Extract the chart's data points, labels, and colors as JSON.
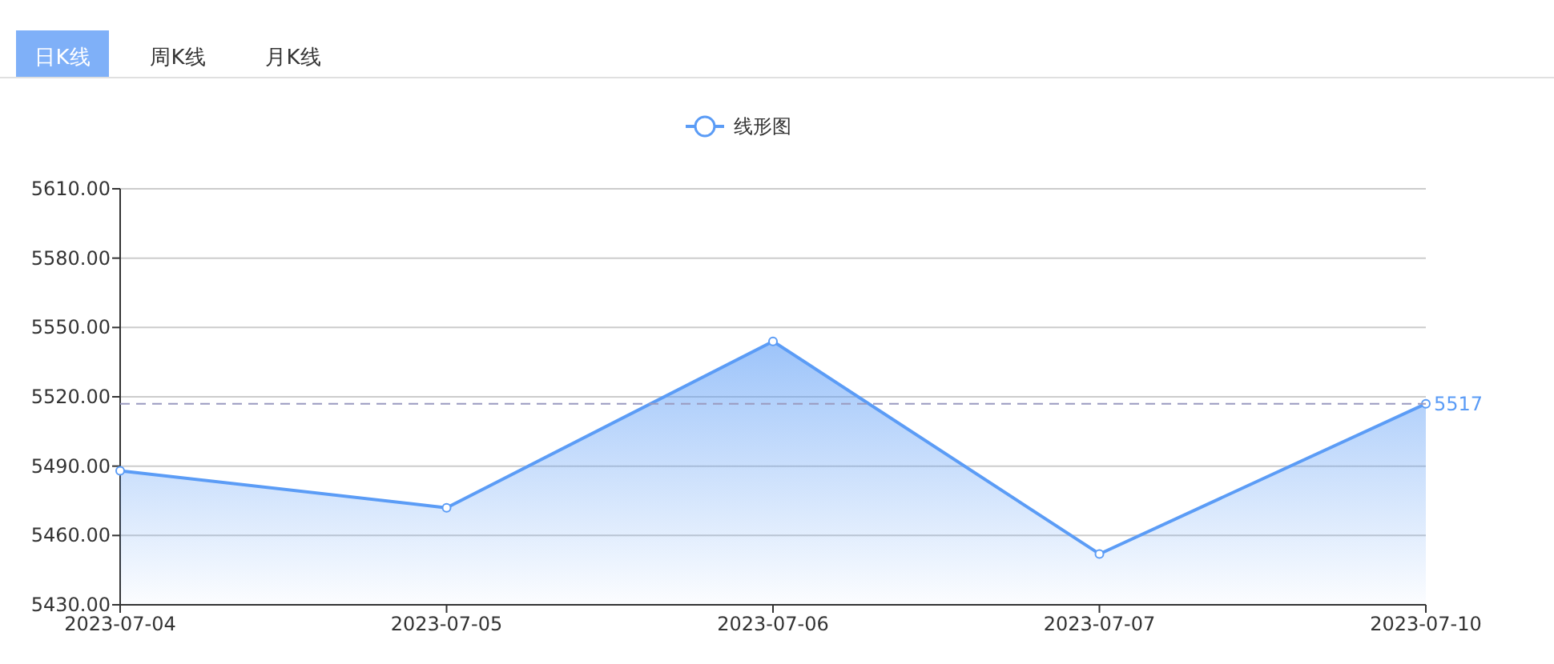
{
  "chart_data": {
    "type": "area",
    "annotations": [
      "日K线",
      "周K线",
      "月K线"
    ],
    "categories": [
      "2023-07-04",
      "2023-07-05",
      "2023-07-06",
      "2023-07-07",
      "2023-07-10"
    ],
    "series": [
      {
        "name": "线形图",
        "color": "#5b9cf6",
        "values": [
          5488,
          5472,
          5544,
          5452,
          5517
        ]
      }
    ],
    "ylim": [
      5430,
      5610
    ],
    "yticks": [
      {
        "value": 5430,
        "label": "5430.00"
      },
      {
        "value": 5460,
        "label": "5460.00"
      },
      {
        "value": 5490,
        "label": "5490.00"
      },
      {
        "value": 5520,
        "label": "5520.00"
      },
      {
        "value": 5550,
        "label": "5550.00"
      },
      {
        "value": 5580,
        "label": "5580.00"
      },
      {
        "value": 5610,
        "label": "5610.00"
      }
    ],
    "ref_lines": [
      {
        "axis": "y",
        "value": 5517,
        "label": "5517",
        "color": "#9a9ac0",
        "line_style": "dashed"
      }
    ],
    "grid": "y",
    "legend": "top",
    "marker": "circle",
    "line_style": "solid"
  }
}
